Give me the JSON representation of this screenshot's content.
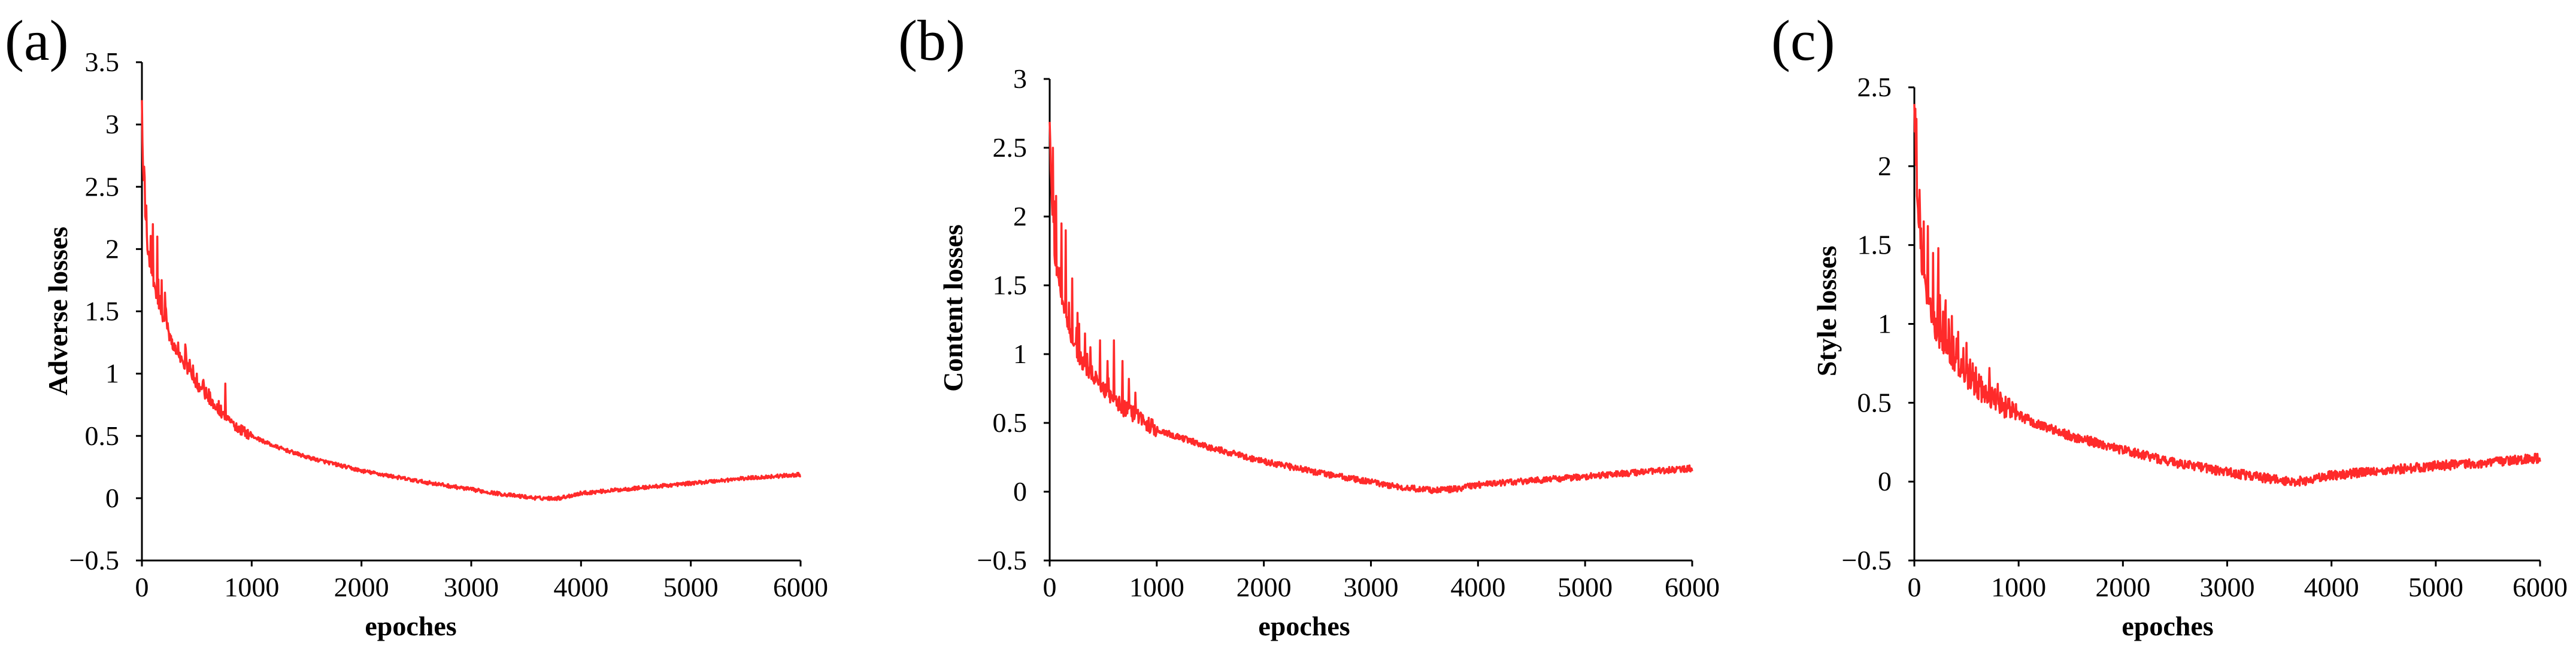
{
  "colors": {
    "series": "#ff2a2a",
    "axis": "#000000"
  },
  "chart_data": [
    {
      "type": "line",
      "panel_label": "(a)",
      "title": "",
      "xlabel": "epoches",
      "ylabel": "Adverse losses",
      "xlim": [
        0,
        6000
      ],
      "ylim": [
        -0.5,
        3.5
      ],
      "xticks": [
        0,
        1000,
        2000,
        3000,
        4000,
        5000,
        6000
      ],
      "yticks": [
        -0.5,
        0,
        0.5,
        1,
        1.5,
        2,
        2.5,
        3,
        3.5
      ],
      "ytick_labels": [
        "−0.5",
        "0",
        "0.5",
        "1",
        "1.5",
        "2",
        "2.5",
        "3",
        "3.5"
      ],
      "grid": false,
      "series": [
        {
          "name": "Adverse losses",
          "x": [
            0,
            20,
            50,
            100,
            150,
            200,
            300,
            400,
            500,
            600,
            700,
            800,
            900,
            1000,
            1200,
            1500,
            2000,
            2500,
            3000,
            3300,
            3600,
            3800,
            4000,
            4500,
            5000,
            5500,
            6000
          ],
          "y": [
            3.0,
            2.4,
            2.0,
            1.75,
            1.55,
            1.4,
            1.2,
            1.05,
            0.9,
            0.8,
            0.7,
            0.62,
            0.55,
            0.5,
            0.42,
            0.33,
            0.22,
            0.14,
            0.07,
            0.03,
            0.0,
            0.0,
            0.04,
            0.08,
            0.12,
            0.16,
            0.19
          ],
          "spikes": [
            {
              "x": 40,
              "y": 2.35
            },
            {
              "x": 100,
              "y": 2.2
            },
            {
              "x": 140,
              "y": 2.1
            },
            {
              "x": 180,
              "y": 1.75
            },
            {
              "x": 210,
              "y": 1.65
            },
            {
              "x": 260,
              "y": 1.3
            },
            {
              "x": 330,
              "y": 1.25
            },
            {
              "x": 400,
              "y": 1.2
            },
            {
              "x": 440,
              "y": 1.05
            },
            {
              "x": 500,
              "y": 1.0
            },
            {
              "x": 560,
              "y": 0.95
            },
            {
              "x": 620,
              "y": 0.85
            },
            {
              "x": 700,
              "y": 0.78
            },
            {
              "x": 760,
              "y": 0.92
            }
          ],
          "noise": 0.01
        }
      ]
    },
    {
      "type": "line",
      "panel_label": "(b)",
      "title": "",
      "xlabel": "epoches",
      "ylabel": "Content losses",
      "xlim": [
        0,
        6000
      ],
      "ylim": [
        -0.5,
        3
      ],
      "xticks": [
        0,
        1000,
        2000,
        3000,
        4000,
        5000,
        6000
      ],
      "yticks": [
        -0.5,
        0,
        0.5,
        1,
        1.5,
        2,
        2.5,
        3
      ],
      "ytick_labels": [
        "−0.5",
        "0",
        "0.5",
        "1",
        "1.5",
        "2",
        "2.5",
        "3"
      ],
      "grid": false,
      "series": [
        {
          "name": "Content losses",
          "x": [
            0,
            20,
            50,
            100,
            150,
            200,
            300,
            400,
            500,
            600,
            700,
            800,
            900,
            1000,
            1200,
            1500,
            2000,
            2500,
            3000,
            3300,
            3600,
            3800,
            4000,
            4500,
            5000,
            5500,
            6000
          ],
          "y": [
            2.7,
            2.1,
            1.7,
            1.45,
            1.25,
            1.1,
            0.95,
            0.85,
            0.75,
            0.67,
            0.6,
            0.55,
            0.5,
            0.45,
            0.4,
            0.32,
            0.22,
            0.14,
            0.07,
            0.03,
            0.01,
            0.02,
            0.05,
            0.08,
            0.11,
            0.14,
            0.17
          ],
          "spikes": [
            {
              "x": 30,
              "y": 2.5
            },
            {
              "x": 60,
              "y": 2.15
            },
            {
              "x": 110,
              "y": 1.95
            },
            {
              "x": 150,
              "y": 1.9
            },
            {
              "x": 210,
              "y": 1.55
            },
            {
              "x": 260,
              "y": 1.3
            },
            {
              "x": 330,
              "y": 1.15
            },
            {
              "x": 380,
              "y": 1.05
            },
            {
              "x": 470,
              "y": 1.1
            },
            {
              "x": 540,
              "y": 0.95
            },
            {
              "x": 600,
              "y": 1.1
            },
            {
              "x": 680,
              "y": 0.95
            },
            {
              "x": 740,
              "y": 0.82
            },
            {
              "x": 800,
              "y": 0.72
            }
          ],
          "noise": 0.015
        }
      ]
    },
    {
      "type": "line",
      "panel_label": "(c)",
      "title": "",
      "xlabel": "epoches",
      "ylabel": "Style losses",
      "xlim": [
        0,
        6000
      ],
      "ylim": [
        -0.5,
        2.5
      ],
      "xticks": [
        0,
        1000,
        2000,
        3000,
        4000,
        5000,
        6000
      ],
      "yticks": [
        -0.5,
        0,
        0.5,
        1,
        1.5,
        2,
        2.5
      ],
      "ytick_labels": [
        "−0.5",
        "0",
        "0.5",
        "1",
        "1.5",
        "2",
        "2.5"
      ],
      "grid": false,
      "series": [
        {
          "name": "Style losses",
          "x": [
            0,
            20,
            50,
            100,
            150,
            200,
            300,
            400,
            500,
            600,
            700,
            800,
            900,
            1000,
            1200,
            1500,
            2000,
            2500,
            3000,
            3300,
            3600,
            3800,
            4000,
            4500,
            5000,
            5500,
            6000
          ],
          "y": [
            2.35,
            1.85,
            1.5,
            1.25,
            1.1,
            0.98,
            0.85,
            0.75,
            0.67,
            0.6,
            0.55,
            0.5,
            0.46,
            0.42,
            0.36,
            0.29,
            0.2,
            0.12,
            0.06,
            0.03,
            0.0,
            0.01,
            0.04,
            0.07,
            0.1,
            0.12,
            0.15
          ],
          "spikes": [
            {
              "x": 20,
              "y": 2.3
            },
            {
              "x": 50,
              "y": 1.85
            },
            {
              "x": 90,
              "y": 1.65
            },
            {
              "x": 130,
              "y": 1.62
            },
            {
              "x": 180,
              "y": 1.45
            },
            {
              "x": 230,
              "y": 1.48
            },
            {
              "x": 300,
              "y": 1.15
            },
            {
              "x": 360,
              "y": 1.05
            },
            {
              "x": 420,
              "y": 0.95
            },
            {
              "x": 500,
              "y": 0.88
            },
            {
              "x": 560,
              "y": 0.75
            },
            {
              "x": 620,
              "y": 0.68
            },
            {
              "x": 720,
              "y": 0.72
            },
            {
              "x": 800,
              "y": 0.62
            }
          ],
          "noise": 0.02
        }
      ]
    }
  ]
}
